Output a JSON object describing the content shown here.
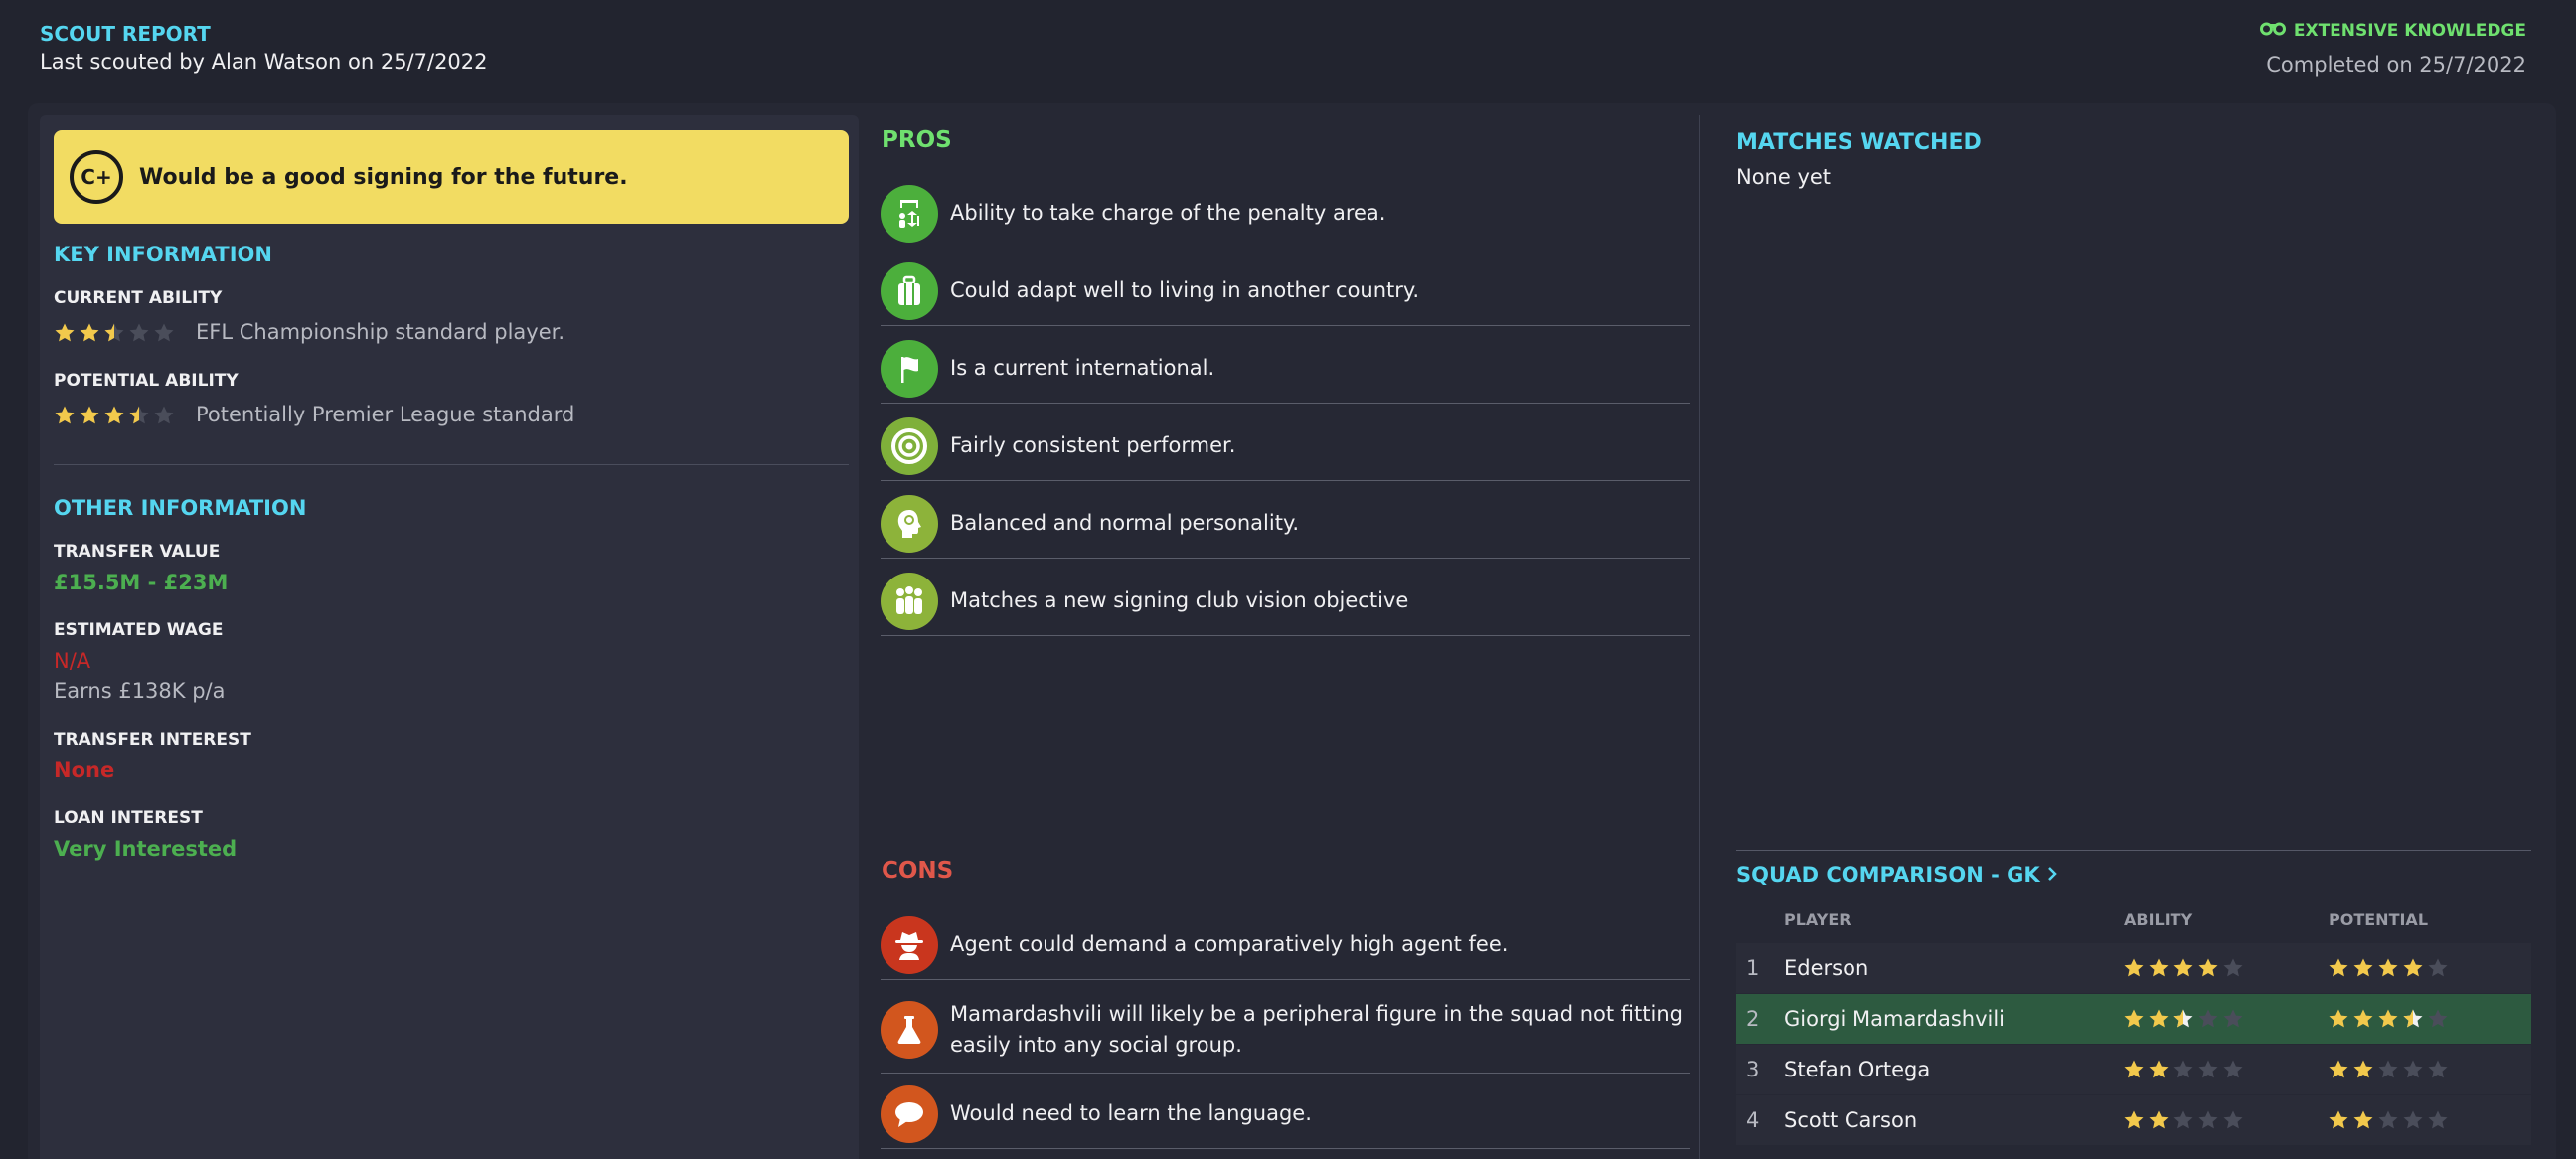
{
  "header": {
    "title": "SCOUT REPORT",
    "subtitle": "Last scouted by Alan Watson on 25/7/2022",
    "knowledge": "EXTENSIVE KNOWLEDGE",
    "completed": "Completed on 25/7/2022"
  },
  "verdict": {
    "grade": "C+",
    "text": "Would be a good signing for the future."
  },
  "key_info": {
    "title": "KEY INFORMATION",
    "current_ability_label": "CURRENT ABILITY",
    "current_ability_stars": 2.5,
    "current_ability_text": "EFL Championship standard player.",
    "potential_ability_label": "POTENTIAL ABILITY",
    "potential_ability_stars": 3.5,
    "potential_ability_text": "Potentially Premier League standard"
  },
  "other_info": {
    "title": "OTHER INFORMATION",
    "transfer_value_label": "TRANSFER VALUE",
    "transfer_value": "£15.5M - £23M",
    "estimated_wage_label": "ESTIMATED WAGE",
    "estimated_wage": "N/A",
    "earns": "Earns £138K p/a",
    "transfer_interest_label": "TRANSFER INTEREST",
    "transfer_interest": "None",
    "loan_interest_label": "LOAN INTEREST",
    "loan_interest": "Very Interested"
  },
  "pros": {
    "title": "PROS",
    "items": [
      {
        "text": "Ability to take charge of the penalty area.",
        "icon": "goalkeeper-icon",
        "color": "#4caf3c"
      },
      {
        "text": "Could adapt well to living in another country.",
        "icon": "suitcase-icon",
        "color": "#4caf3c"
      },
      {
        "text": "Is a current international.",
        "icon": "flag-icon",
        "color": "#4caf3c"
      },
      {
        "text": "Fairly consistent performer.",
        "icon": "target-icon",
        "color": "#7fb03a"
      },
      {
        "text": "Balanced and normal personality.",
        "icon": "head-icon",
        "color": "#8db33a"
      },
      {
        "text": "Matches a new signing club vision objective",
        "icon": "group-icon",
        "color": "#8db33a"
      }
    ]
  },
  "cons": {
    "title": "CONS",
    "items": [
      {
        "text": "Agent could demand a comparatively high agent fee.",
        "icon": "agent-icon",
        "color": "#c9361e"
      },
      {
        "text": "Mamardashvili will likely be a peripheral figure in the squad not fitting easily into any social group.",
        "icon": "flask-icon",
        "color": "#d2561e"
      },
      {
        "text": "Would need to learn the language.",
        "icon": "speech-icon",
        "color": "#d2561e"
      }
    ]
  },
  "matches": {
    "title": "MATCHES WATCHED",
    "value": "None yet"
  },
  "squad": {
    "title": "SQUAD COMPARISON - GK",
    "col_player": "PLAYER",
    "col_ability": "ABILITY",
    "col_potential": "POTENTIAL",
    "rows": [
      {
        "num": "1",
        "name": "Ederson",
        "ability": 4,
        "potential": 4
      },
      {
        "num": "2",
        "name": "Giorgi Mamardashvili",
        "ability": 2.5,
        "potential": 3.5
      },
      {
        "num": "3",
        "name": "Stefan Ortega",
        "ability": 2,
        "potential": 2
      },
      {
        "num": "4",
        "name": "Scott Carson",
        "ability": 2,
        "potential": 2
      }
    ]
  },
  "colors": {
    "star_filled": "#f2c94c",
    "star_empty": "#4a4d5a",
    "star_half_fill": "#f0f0f2"
  }
}
